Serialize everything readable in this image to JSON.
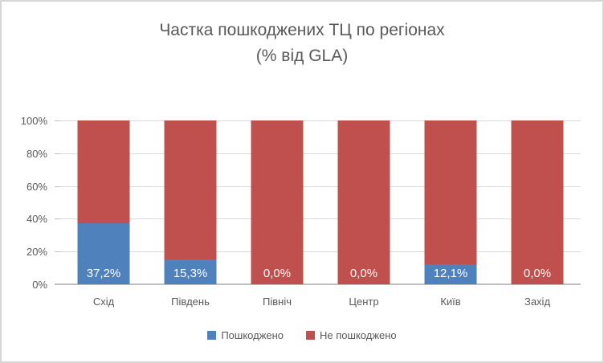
{
  "title": {
    "line1": "Частка пошкоджених ТЦ по регіонах",
    "line2": "(% від GLA)"
  },
  "colors": {
    "background": "#ffffff",
    "border": "#d6d6d6",
    "text": "#595959",
    "gridline": "#d9d9d9",
    "axis_line": "#bfbfbf",
    "damaged": "#4f81bd",
    "undamaged": "#c0504d",
    "label_text": "#ffffff"
  },
  "chart_data": {
    "type": "bar",
    "stacked": true,
    "stacking": "percent",
    "title": "Частка пошкоджених ТЦ по регіонах (% від GLA)",
    "categories": [
      "Схід",
      "Південь",
      "Північ",
      "Центр",
      "Київ",
      "Захід"
    ],
    "series": [
      {
        "name": "Пошкоджено",
        "color": "#4f81bd",
        "values": [
          37.2,
          15.3,
          0.0,
          0.0,
          12.1,
          0.0
        ],
        "data_labels": [
          "37,2%",
          "15,3%",
          "0,0%",
          "0,0%",
          "12,1%",
          "0,0%"
        ]
      },
      {
        "name": "Не пошкоджено",
        "color": "#c0504d",
        "values": [
          62.8,
          84.7,
          100.0,
          100.0,
          87.9,
          100.0
        ]
      }
    ],
    "xlabel": "",
    "ylabel": "",
    "ylim": [
      0,
      100
    ],
    "y_ticks": [
      "0%",
      "20%",
      "40%",
      "60%",
      "80%",
      "100%"
    ],
    "grid": true,
    "legend_position": "bottom"
  }
}
